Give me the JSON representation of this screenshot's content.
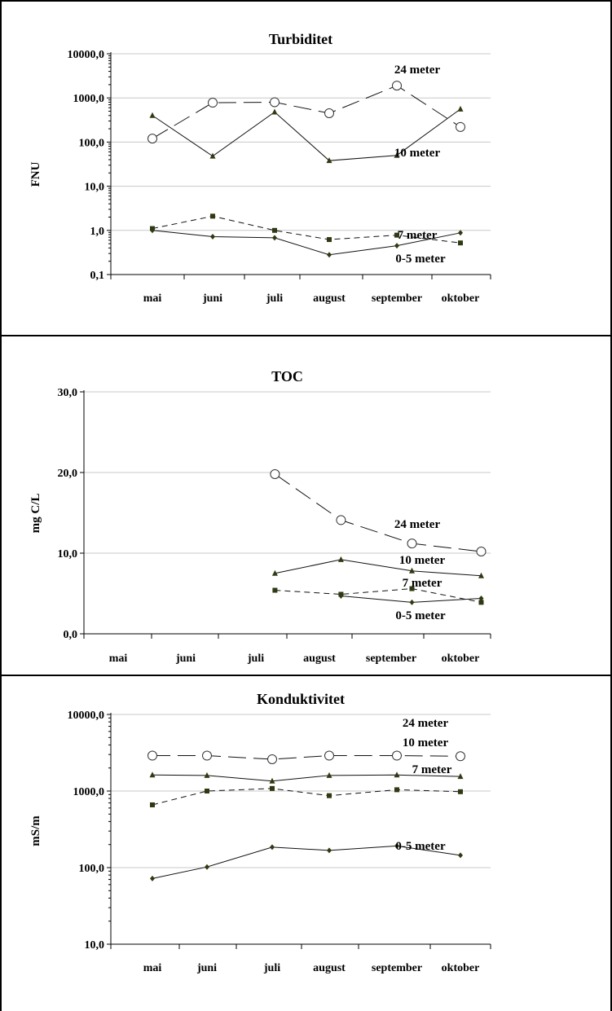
{
  "chart_data": [
    {
      "type": "line",
      "title": "Turbiditet",
      "ylabel": "FNU",
      "yscale": "log",
      "ylim": [
        0.1,
        10000
      ],
      "yticks": [
        "0,1",
        "1,0",
        "10,0",
        "100,0",
        "1000,0",
        "10000,0"
      ],
      "categories": [
        "mai",
        "juni",
        "juli",
        "august",
        "september",
        "oktober"
      ],
      "grid": "horizontal",
      "series": [
        {
          "name": "24 meter",
          "x": [
            0,
            1,
            2,
            3,
            4,
            5
          ],
          "values": [
            120,
            780,
            800,
            450,
            1900,
            220
          ],
          "marker": "open-circle",
          "dash": "long"
        },
        {
          "name": "10 meter",
          "x": [
            0,
            1,
            2,
            3,
            4,
            5
          ],
          "values": [
            400,
            48,
            480,
            38,
            50,
            560
          ],
          "marker": "triangle",
          "dash": "solid"
        },
        {
          "name": "7 meter",
          "x": [
            0,
            1,
            2,
            3,
            4,
            5
          ],
          "values": [
            1.1,
            2.1,
            1.0,
            0.62,
            0.78,
            0.52
          ],
          "marker": "square",
          "dash": "short"
        },
        {
          "name": "0-5 meter",
          "x": [
            0,
            1,
            2,
            3,
            4,
            5
          ],
          "values": [
            1.0,
            0.72,
            0.68,
            0.28,
            0.45,
            0.88
          ],
          "marker": "diamond",
          "dash": "solid"
        }
      ]
    },
    {
      "type": "line",
      "title": "TOC",
      "ylabel": "mg C/L",
      "yscale": "linear",
      "ylim": [
        0,
        30
      ],
      "yticks": [
        "0,0",
        "10,0",
        "20,0",
        "30,0"
      ],
      "categories": [
        "mai",
        "juni",
        "juli",
        "august",
        "september",
        "oktober"
      ],
      "grid": "horizontal",
      "series": [
        {
          "name": "24 meter",
          "x": [
            2.3,
            3.3,
            4.3,
            5.3
          ],
          "values": [
            19.8,
            14.1,
            11.2,
            10.2
          ],
          "marker": "open-circle",
          "dash": "long"
        },
        {
          "name": "10 meter",
          "x": [
            2.3,
            3.3,
            4.3,
            5.3
          ],
          "values": [
            7.5,
            9.2,
            7.8,
            7.2
          ],
          "marker": "triangle",
          "dash": "solid"
        },
        {
          "name": "7 meter",
          "x": [
            2.3,
            3.3,
            4.3,
            5.3
          ],
          "values": [
            5.4,
            4.9,
            5.6,
            3.9
          ],
          "marker": "square",
          "dash": "short"
        },
        {
          "name": "0-5 meter",
          "x": [
            3.3,
            4.3,
            5.3
          ],
          "values": [
            4.7,
            3.9,
            4.4
          ],
          "marker": "diamond",
          "dash": "solid"
        }
      ]
    },
    {
      "type": "line",
      "title": "Konduktivitet",
      "ylabel": "mS/m",
      "yscale": "log",
      "ylim": [
        10,
        10000
      ],
      "yticks": [
        "10,0",
        "100,0",
        "1000,0",
        "10000,0"
      ],
      "categories": [
        "mai",
        "juni",
        "juli",
        "august",
        "september",
        "oktober"
      ],
      "grid": "horizontal",
      "series": [
        {
          "name": "24 meter",
          "x": [
            0,
            1,
            2,
            3,
            4,
            5
          ],
          "values": [
            2900,
            2900,
            2600,
            2900,
            2900,
            2850
          ],
          "marker": "open-circle",
          "dash": "long"
        },
        {
          "name": "10 meter",
          "x": [
            0,
            1,
            2,
            3,
            4,
            5
          ],
          "values": [
            1620,
            1600,
            1350,
            1600,
            1620,
            1550
          ],
          "marker": "triangle",
          "dash": "solid"
        },
        {
          "name": "7 meter",
          "x": [
            0,
            1,
            2,
            3,
            4,
            5
          ],
          "values": [
            660,
            1000,
            1080,
            870,
            1040,
            980
          ],
          "marker": "square",
          "dash": "short"
        },
        {
          "name": "0-5 meter",
          "x": [
            0,
            1,
            2,
            3,
            4,
            5
          ],
          "values": [
            72,
            102,
            185,
            168,
            192,
            145
          ],
          "marker": "diamond",
          "dash": "solid"
        }
      ]
    }
  ]
}
